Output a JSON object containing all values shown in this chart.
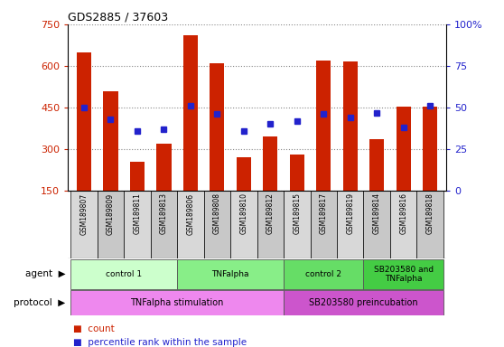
{
  "title": "GDS2885 / 37603",
  "samples": [
    "GSM189807",
    "GSM189809",
    "GSM189811",
    "GSM189813",
    "GSM189806",
    "GSM189808",
    "GSM189810",
    "GSM189812",
    "GSM189815",
    "GSM189817",
    "GSM189819",
    "GSM189814",
    "GSM189816",
    "GSM189818"
  ],
  "counts": [
    650,
    510,
    255,
    320,
    710,
    610,
    270,
    345,
    280,
    620,
    615,
    335,
    455,
    455
  ],
  "percentiles": [
    50,
    43,
    36,
    37,
    51,
    46,
    36,
    40,
    42,
    46,
    44,
    47,
    38,
    51
  ],
  "ylim_left": [
    150,
    750
  ],
  "ylim_right": [
    0,
    100
  ],
  "yticks_left": [
    150,
    300,
    450,
    600,
    750
  ],
  "yticks_right": [
    0,
    25,
    50,
    75,
    100
  ],
  "bar_color": "#CC2200",
  "dot_color": "#2222CC",
  "left_axis_color": "#CC2200",
  "right_axis_color": "#2222CC",
  "agent_groups": [
    {
      "label": "control 1",
      "start": 0,
      "end": 4,
      "color": "#ccffcc"
    },
    {
      "label": "TNFalpha",
      "start": 4,
      "end": 8,
      "color": "#88ee88"
    },
    {
      "label": "control 2",
      "start": 8,
      "end": 11,
      "color": "#66dd66"
    },
    {
      "label": "SB203580 and\nTNFalpha",
      "start": 11,
      "end": 14,
      "color": "#44cc44"
    }
  ],
  "protocol_groups": [
    {
      "label": "TNFalpha stimulation",
      "start": 0,
      "end": 8,
      "color": "#ee88ee"
    },
    {
      "label": "SB203580 preincubation",
      "start": 8,
      "end": 14,
      "color": "#cc55cc"
    }
  ],
  "sample_colors": [
    "#d8d8d8",
    "#c8c8c8"
  ]
}
